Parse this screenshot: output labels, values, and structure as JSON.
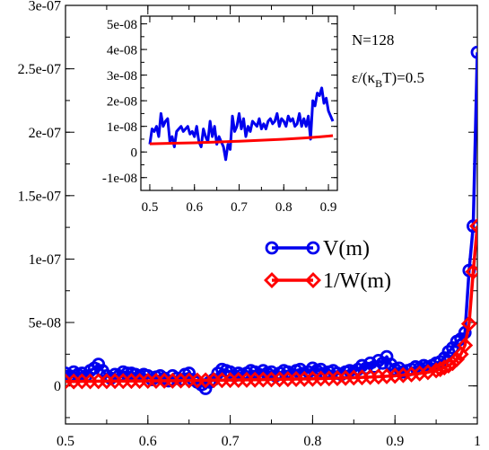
{
  "chart_data": [
    {
      "type": "line",
      "role": "main",
      "xlim": [
        0.5,
        1.0
      ],
      "ylim": [
        -3e-08,
        3e-07
      ],
      "x_ticks": [
        0.5,
        0.6,
        0.7,
        0.8,
        0.9,
        1
      ],
      "x_tick_labels": [
        "0.5",
        "0.6",
        "0.7",
        "0.8",
        "0.9",
        "1"
      ],
      "y_ticks": [
        0,
        5e-08,
        1e-07,
        1.5e-07,
        2e-07,
        2.5e-07,
        3e-07
      ],
      "y_tick_labels": [
        "0",
        "5e-08",
        "1e-07",
        "1.5e-07",
        "2e-07",
        "2.5e-07",
        "3e-07"
      ],
      "legend_position": "right-center",
      "annotations": [
        "N=128",
        "ε/(κ",
        "B",
        "T)=0.5"
      ],
      "series": [
        {
          "name": "V(m)",
          "color": "#0000ee",
          "marker": "circle",
          "points": [
            [
              0.5,
              1e-08
            ],
            [
              0.505,
              8e-09
            ],
            [
              0.51,
              1.1e-08
            ],
            [
              0.515,
              9e-09
            ],
            [
              0.52,
              1e-08
            ],
            [
              0.525,
              8e-09
            ],
            [
              0.53,
              1.2e-08
            ],
            [
              0.535,
              1.4e-08
            ],
            [
              0.54,
              1.7e-08
            ],
            [
              0.545,
              1.2e-08
            ],
            [
              0.55,
              8e-09
            ],
            [
              0.555,
              6e-09
            ],
            [
              0.56,
              9e-09
            ],
            [
              0.565,
              8e-09
            ],
            [
              0.57,
              1.1e-08
            ],
            [
              0.575,
              1e-08
            ],
            [
              0.58,
              1e-08
            ],
            [
              0.585,
              9e-09
            ],
            [
              0.59,
              8e-09
            ],
            [
              0.595,
              9e-09
            ],
            [
              0.6,
              8e-09
            ],
            [
              0.605,
              5e-09
            ],
            [
              0.61,
              7e-09
            ],
            [
              0.615,
              8e-09
            ],
            [
              0.62,
              6e-09
            ],
            [
              0.625,
              4e-09
            ],
            [
              0.63,
              8e-09
            ],
            [
              0.635,
              6e-09
            ],
            [
              0.64,
              5e-09
            ],
            [
              0.645,
              9e-09
            ],
            [
              0.65,
              1e-08
            ],
            [
              0.655,
              5e-09
            ],
            [
              0.66,
              3e-09
            ],
            [
              0.665,
              1e-09
            ],
            [
              0.67,
              -2e-09
            ],
            [
              0.675,
              3e-09
            ],
            [
              0.68,
              5e-09
            ],
            [
              0.685,
              1e-08
            ],
            [
              0.69,
              1.3e-08
            ],
            [
              0.695,
              1.2e-08
            ],
            [
              0.7,
              1.1e-08
            ],
            [
              0.705,
              8e-09
            ],
            [
              0.71,
              1e-08
            ],
            [
              0.715,
              9e-09
            ],
            [
              0.72,
              1e-08
            ],
            [
              0.725,
              1.2e-08
            ],
            [
              0.73,
              1.1e-08
            ],
            [
              0.735,
              9e-09
            ],
            [
              0.74,
              1.2e-08
            ],
            [
              0.745,
              1e-08
            ],
            [
              0.75,
              1.1e-08
            ],
            [
              0.755,
              8e-09
            ],
            [
              0.76,
              1e-08
            ],
            [
              0.765,
              1.2e-08
            ],
            [
              0.77,
              1.1e-08
            ],
            [
              0.775,
              9e-09
            ],
            [
              0.78,
              1.2e-08
            ],
            [
              0.785,
              1.3e-08
            ],
            [
              0.79,
              1e-08
            ],
            [
              0.795,
              1.1e-08
            ],
            [
              0.8,
              1.4e-08
            ],
            [
              0.805,
              1.2e-08
            ],
            [
              0.81,
              1.3e-08
            ],
            [
              0.815,
              1e-08
            ],
            [
              0.82,
              1.1e-08
            ],
            [
              0.825,
              1.2e-08
            ],
            [
              0.83,
              1e-08
            ],
            [
              0.835,
              9e-09
            ],
            [
              0.84,
              1.1e-08
            ],
            [
              0.845,
              1.2e-08
            ],
            [
              0.85,
              1.1e-08
            ],
            [
              0.855,
              1.3e-08
            ],
            [
              0.86,
              1.6e-08
            ],
            [
              0.865,
              1.4e-08
            ],
            [
              0.87,
              1.8e-08
            ],
            [
              0.875,
              1.5e-08
            ],
            [
              0.88,
              2e-08
            ],
            [
              0.885,
              1.8e-08
            ],
            [
              0.89,
              2.3e-08
            ],
            [
              0.895,
              1.7e-08
            ],
            [
              0.9,
              1.3e-08
            ],
            [
              0.905,
              1.4e-08
            ],
            [
              0.91,
              1.1e-08
            ],
            [
              0.915,
              1.2e-08
            ],
            [
              0.92,
              1.3e-08
            ],
            [
              0.925,
              1.5e-08
            ],
            [
              0.93,
              1.4e-08
            ],
            [
              0.935,
              1.6e-08
            ],
            [
              0.94,
              1.5e-08
            ],
            [
              0.945,
              1.6e-08
            ],
            [
              0.95,
              1.8e-08
            ],
            [
              0.955,
              1.9e-08
            ],
            [
              0.96,
              2.2e-08
            ],
            [
              0.965,
              2.7e-08
            ],
            [
              0.97,
              3e-08
            ],
            [
              0.975,
              3.5e-08
            ],
            [
              0.98,
              3.7e-08
            ],
            [
              0.985,
              4.2e-08
            ],
            [
              0.99,
              9.1e-08
            ],
            [
              0.995,
              1.26e-07
            ],
            [
              1.0,
              2.63e-07
            ]
          ]
        },
        {
          "name": "1/W(m)",
          "color": "#ff0000",
          "marker": "diamond",
          "points": [
            [
              0.5,
              3.5e-09
            ],
            [
              0.51,
              3.5e-09
            ],
            [
              0.52,
              3.6e-09
            ],
            [
              0.53,
              3.6e-09
            ],
            [
              0.54,
              3.7e-09
            ],
            [
              0.55,
              3.7e-09
            ],
            [
              0.56,
              3.8e-09
            ],
            [
              0.57,
              3.8e-09
            ],
            [
              0.58,
              3.9e-09
            ],
            [
              0.59,
              3.9e-09
            ],
            [
              0.6,
              4e-09
            ],
            [
              0.61,
              4e-09
            ],
            [
              0.62,
              4.1e-09
            ],
            [
              0.63,
              4.1e-09
            ],
            [
              0.64,
              4.2e-09
            ],
            [
              0.65,
              4.3e-09
            ],
            [
              0.66,
              4.3e-09
            ],
            [
              0.67,
              4.4e-09
            ],
            [
              0.68,
              4.5e-09
            ],
            [
              0.69,
              4.5e-09
            ],
            [
              0.7,
              4.6e-09
            ],
            [
              0.71,
              4.7e-09
            ],
            [
              0.72,
              4.8e-09
            ],
            [
              0.73,
              4.9e-09
            ],
            [
              0.74,
              5e-09
            ],
            [
              0.75,
              5.1e-09
            ],
            [
              0.76,
              5.2e-09
            ],
            [
              0.77,
              5.3e-09
            ],
            [
              0.78,
              5.4e-09
            ],
            [
              0.79,
              5.5e-09
            ],
            [
              0.8,
              5.6e-09
            ],
            [
              0.81,
              5.8e-09
            ],
            [
              0.82,
              5.9e-09
            ],
            [
              0.83,
              6.1e-09
            ],
            [
              0.84,
              6.3e-09
            ],
            [
              0.85,
              6.5e-09
            ],
            [
              0.86,
              6.7e-09
            ],
            [
              0.87,
              7e-09
            ],
            [
              0.88,
              7.3e-09
            ],
            [
              0.89,
              7.6e-09
            ],
            [
              0.9,
              8e-09
            ],
            [
              0.91,
              8.5e-09
            ],
            [
              0.92,
              9e-09
            ],
            [
              0.93,
              9.8e-09
            ],
            [
              0.94,
              1.08e-08
            ],
            [
              0.95,
              1.22e-08
            ],
            [
              0.955,
              1.32e-08
            ],
            [
              0.96,
              1.45e-08
            ],
            [
              0.965,
              1.6e-08
            ],
            [
              0.97,
              1.8e-08
            ],
            [
              0.975,
              2.1e-08
            ],
            [
              0.98,
              2.5e-08
            ],
            [
              0.985,
              3.2e-08
            ],
            [
              0.99,
              4.9e-08
            ],
            [
              0.995,
              9e-08
            ],
            [
              1.0,
              1.26e-07
            ]
          ]
        }
      ]
    },
    {
      "type": "line",
      "role": "inset",
      "xlim": [
        0.48,
        0.92
      ],
      "ylim": [
        -1.5e-08,
        5.3e-08
      ],
      "x_ticks": [
        0.5,
        0.6,
        0.7,
        0.8,
        0.9
      ],
      "x_tick_labels": [
        "0.5",
        "0.6",
        "0.7",
        "0.8",
        "0.9"
      ],
      "y_ticks": [
        -1e-08,
        0,
        1e-08,
        2e-08,
        3e-08,
        4e-08,
        5e-08
      ],
      "y_tick_labels": [
        "-1e-08",
        "0",
        "1e-08",
        "2e-08",
        "3e-08",
        "4e-08",
        "5e-08"
      ],
      "series": [
        {
          "color": "#0000ee",
          "points": [
            [
              0.5,
              3e-09
            ],
            [
              0.505,
              9e-09
            ],
            [
              0.51,
              8e-09
            ],
            [
              0.515,
              1e-08
            ],
            [
              0.52,
              6e-09
            ],
            [
              0.525,
              1.5e-08
            ],
            [
              0.53,
              1e-08
            ],
            [
              0.535,
              1.2e-08
            ],
            [
              0.54,
              1.3e-08
            ],
            [
              0.545,
              4e-09
            ],
            [
              0.55,
              6e-09
            ],
            [
              0.555,
              2e-09
            ],
            [
              0.56,
              8e-09
            ],
            [
              0.565,
              9e-09
            ],
            [
              0.57,
              1e-08
            ],
            [
              0.575,
              8e-09
            ],
            [
              0.58,
              9e-09
            ],
            [
              0.585,
              1e-08
            ],
            [
              0.59,
              7e-09
            ],
            [
              0.595,
              8e-09
            ],
            [
              0.6,
              6e-09
            ],
            [
              0.605,
              1e-08
            ],
            [
              0.61,
              4e-09
            ],
            [
              0.615,
              2e-09
            ],
            [
              0.62,
              9e-09
            ],
            [
              0.625,
              6e-09
            ],
            [
              0.63,
              4e-09
            ],
            [
              0.635,
              1.2e-08
            ],
            [
              0.64,
              6e-09
            ],
            [
              0.645,
              1e-08
            ],
            [
              0.65,
              3e-09
            ],
            [
              0.655,
              6e-09
            ],
            [
              0.66,
              4e-09
            ],
            [
              0.665,
              2e-09
            ],
            [
              0.67,
              -3e-09
            ],
            [
              0.675,
              3e-09
            ],
            [
              0.68,
              1e-09
            ],
            [
              0.685,
              1.4e-08
            ],
            [
              0.69,
              8e-09
            ],
            [
              0.695,
              1e-08
            ],
            [
              0.7,
              1.5e-08
            ],
            [
              0.705,
              9e-09
            ],
            [
              0.71,
              1.3e-08
            ],
            [
              0.715,
              6e-09
            ],
            [
              0.72,
              1e-08
            ],
            [
              0.725,
              8e-09
            ],
            [
              0.73,
              1.2e-08
            ],
            [
              0.735,
              1.1e-08
            ],
            [
              0.74,
              1e-08
            ],
            [
              0.745,
              1.3e-08
            ],
            [
              0.75,
              9e-09
            ],
            [
              0.755,
              1.1e-08
            ],
            [
              0.76,
              9e-09
            ],
            [
              0.765,
              1.2e-08
            ],
            [
              0.77,
              1.3e-08
            ],
            [
              0.775,
              1.1e-08
            ],
            [
              0.78,
              1.2e-08
            ],
            [
              0.785,
              1.5e-08
            ],
            [
              0.79,
              1e-08
            ],
            [
              0.795,
              1.3e-08
            ],
            [
              0.8,
              1.2e-08
            ],
            [
              0.805,
              1e-08
            ],
            [
              0.81,
              1.4e-08
            ],
            [
              0.815,
              1.2e-08
            ],
            [
              0.82,
              1.3e-08
            ],
            [
              0.825,
              1e-08
            ],
            [
              0.83,
              1.1e-08
            ],
            [
              0.835,
              1.5e-08
            ],
            [
              0.84,
              1e-08
            ],
            [
              0.845,
              1.3e-08
            ],
            [
              0.85,
              1e-08
            ],
            [
              0.855,
              1.4e-08
            ],
            [
              0.86,
              5e-09
            ],
            [
              0.865,
              2e-08
            ],
            [
              0.87,
              1.8e-08
            ],
            [
              0.875,
              2.3e-08
            ],
            [
              0.88,
              2.2e-08
            ],
            [
              0.885,
              2.5e-08
            ],
            [
              0.89,
              1.9e-08
            ],
            [
              0.895,
              2.1e-08
            ],
            [
              0.9,
              1.6e-08
            ],
            [
              0.905,
              1.4e-08
            ],
            [
              0.91,
              1.2e-08
            ]
          ]
        },
        {
          "color": "#ff0000",
          "points": [
            [
              0.5,
              3.2e-09
            ],
            [
              0.55,
              3.4e-09
            ],
            [
              0.6,
              3.6e-09
            ],
            [
              0.65,
              3.9e-09
            ],
            [
              0.7,
              4.2e-09
            ],
            [
              0.75,
              4.6e-09
            ],
            [
              0.8,
              5e-09
            ],
            [
              0.85,
              5.5e-09
            ],
            [
              0.88,
              5.9e-09
            ],
            [
              0.9,
              6.2e-09
            ],
            [
              0.91,
              6.4e-09
            ]
          ]
        }
      ]
    }
  ]
}
